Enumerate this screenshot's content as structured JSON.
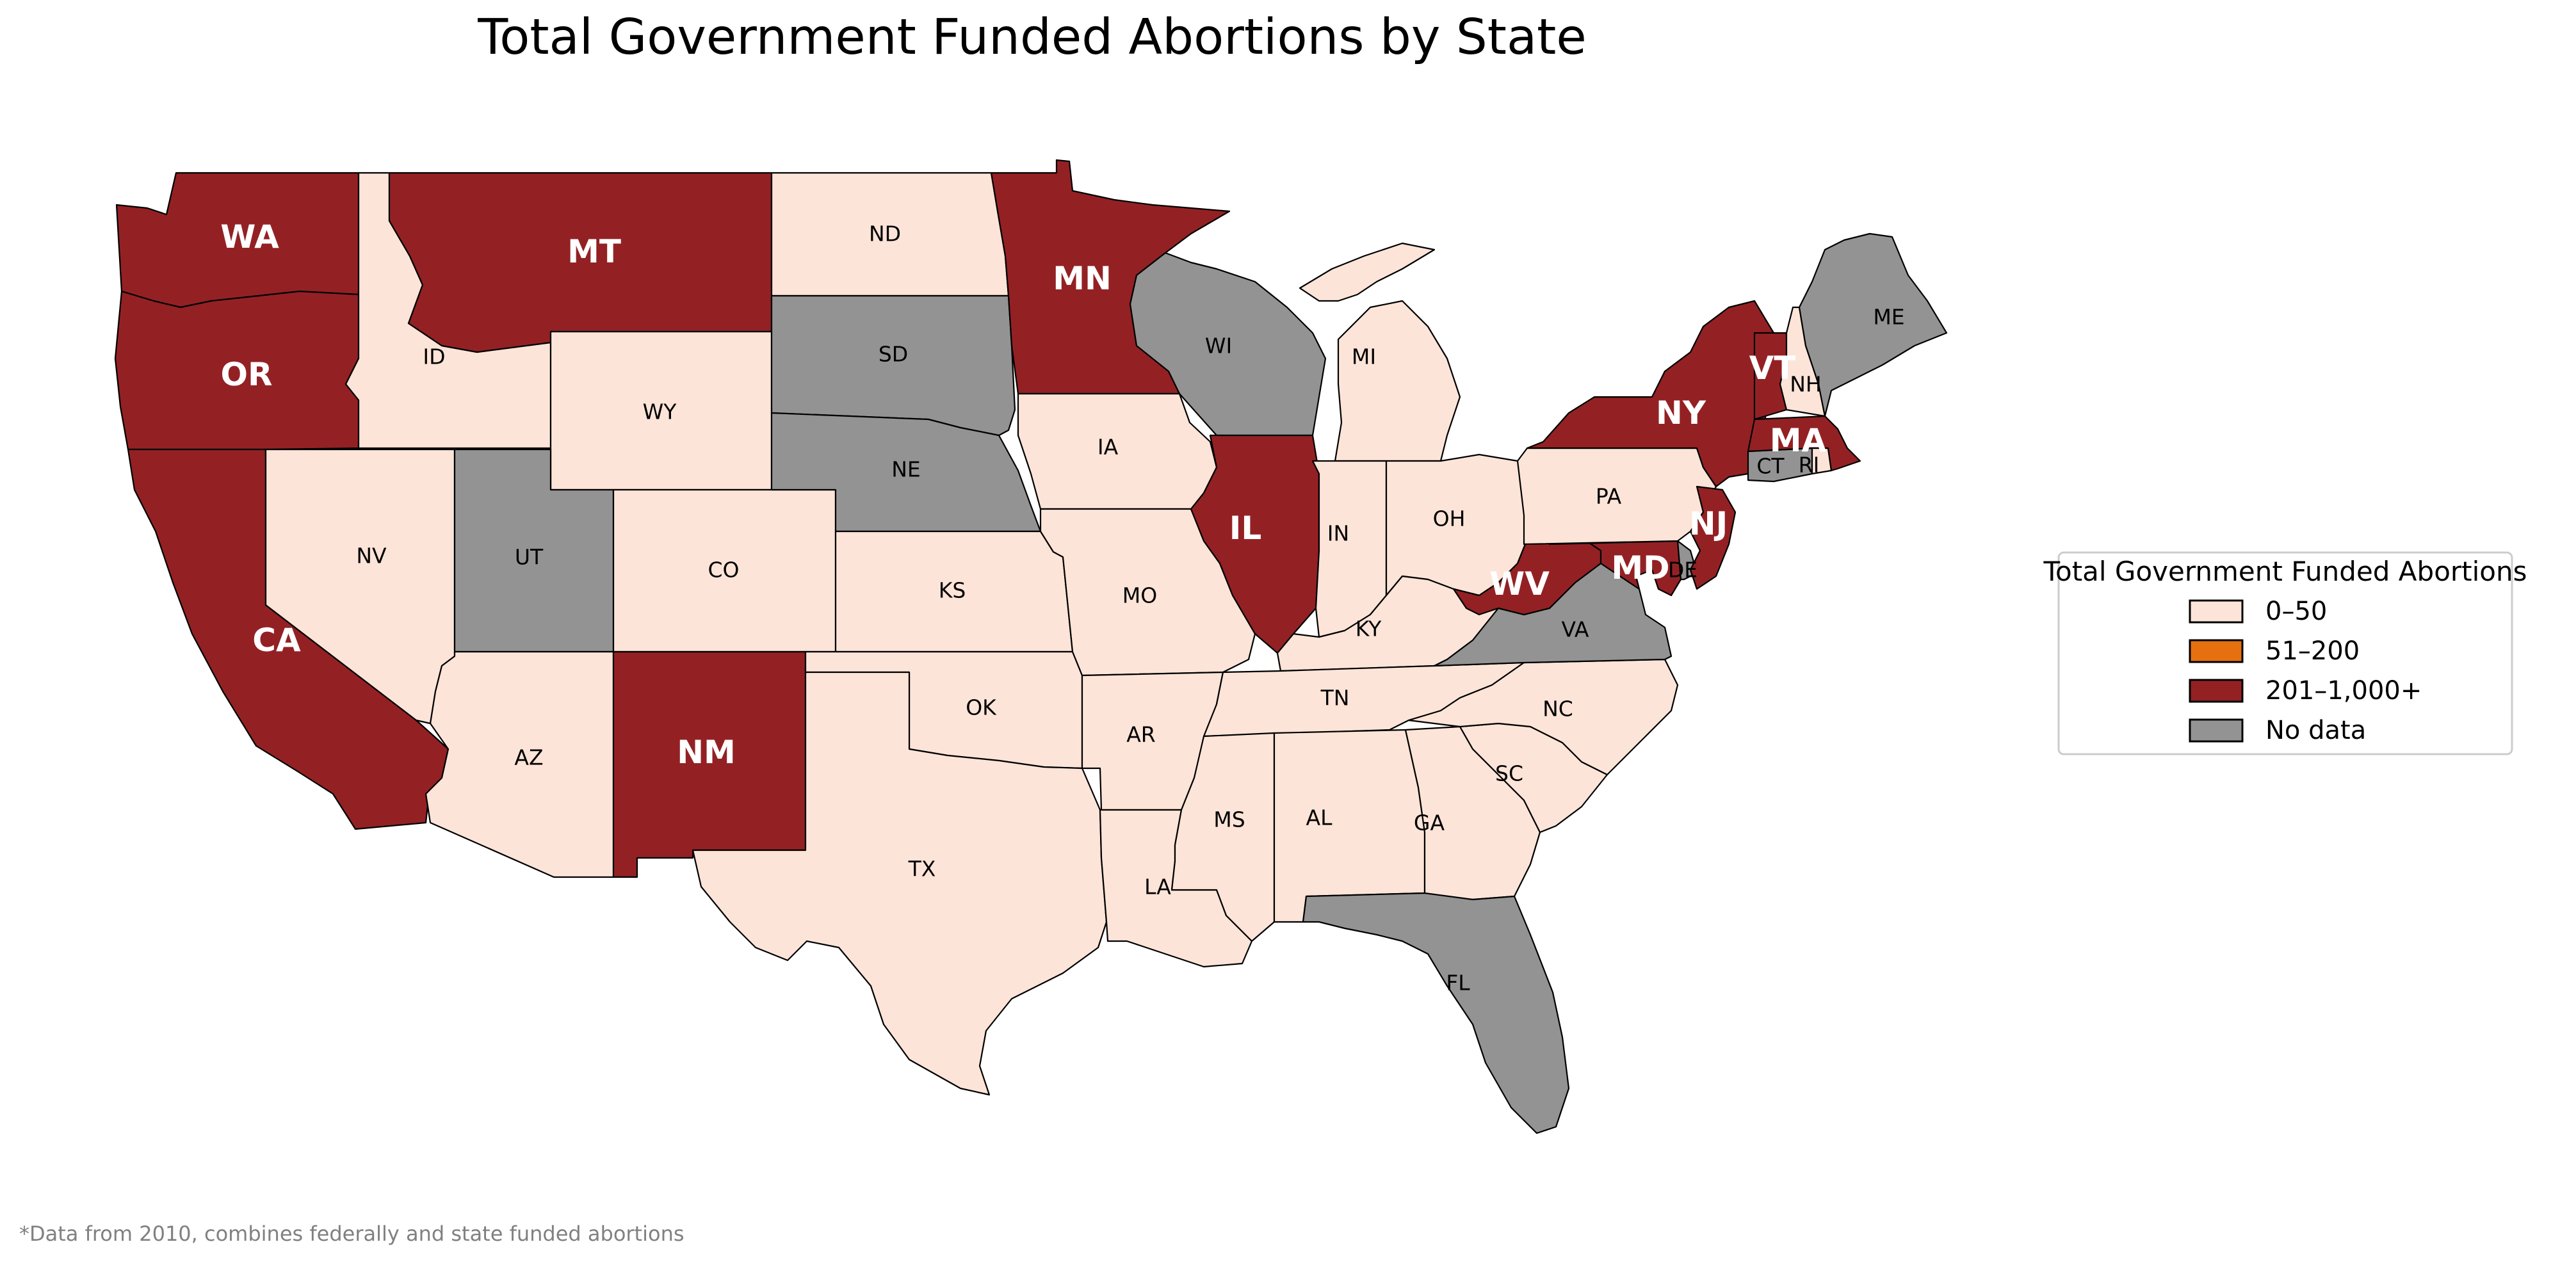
{
  "title": "Total Government Funded Abortions by State",
  "footnote": "*Data from 2010, combines federally and state funded abortions",
  "legend": {
    "title": "Total Government Funded Abortions",
    "items": [
      {
        "label": "0–50",
        "color": "#fde4d8"
      },
      {
        "label": "51–200",
        "color": "#e6700f"
      },
      {
        "label": "201–1,000+",
        "color": "#932124"
      },
      {
        "label": "No data",
        "color": "#939393"
      }
    ]
  },
  "colors": {
    "low": "#fde4d8",
    "mid": "#e6700f",
    "high": "#932124",
    "nodata": "#939393",
    "ocean": "#ffffff"
  },
  "states": [
    {
      "abbr": "WA",
      "category": "201–1,000+"
    },
    {
      "abbr": "OR",
      "category": "201–1,000+"
    },
    {
      "abbr": "CA",
      "category": "201–1,000+"
    },
    {
      "abbr": "ID",
      "category": "0–50"
    },
    {
      "abbr": "NV",
      "category": "0–50"
    },
    {
      "abbr": "MT",
      "category": "201–1,000+"
    },
    {
      "abbr": "WY",
      "category": "0–50"
    },
    {
      "abbr": "UT",
      "category": "No data"
    },
    {
      "abbr": "AZ",
      "category": "0–50"
    },
    {
      "abbr": "CO",
      "category": "0–50"
    },
    {
      "abbr": "NM",
      "category": "201–1,000+"
    },
    {
      "abbr": "ND",
      "category": "0–50"
    },
    {
      "abbr": "SD",
      "category": "No data"
    },
    {
      "abbr": "NE",
      "category": "No data"
    },
    {
      "abbr": "KS",
      "category": "0–50"
    },
    {
      "abbr": "OK",
      "category": "0–50"
    },
    {
      "abbr": "TX",
      "category": "0–50"
    },
    {
      "abbr": "MN",
      "category": "201–1,000+"
    },
    {
      "abbr": "IA",
      "category": "0–50"
    },
    {
      "abbr": "MO",
      "category": "0–50"
    },
    {
      "abbr": "AR",
      "category": "0–50"
    },
    {
      "abbr": "LA",
      "category": "0–50"
    },
    {
      "abbr": "WI",
      "category": "No data"
    },
    {
      "abbr": "IL",
      "category": "201–1,000+"
    },
    {
      "abbr": "MI",
      "category": "0–50"
    },
    {
      "abbr": "IN",
      "category": "0–50"
    },
    {
      "abbr": "OH",
      "category": "0–50"
    },
    {
      "abbr": "KY",
      "category": "0–50"
    },
    {
      "abbr": "TN",
      "category": "0–50"
    },
    {
      "abbr": "MS",
      "category": "0–50"
    },
    {
      "abbr": "AL",
      "category": "0–50"
    },
    {
      "abbr": "GA",
      "category": "0–50"
    },
    {
      "abbr": "FL",
      "category": "No data"
    },
    {
      "abbr": "SC",
      "category": "0–50"
    },
    {
      "abbr": "NC",
      "category": "0–50"
    },
    {
      "abbr": "VA",
      "category": "No data"
    },
    {
      "abbr": "WV",
      "category": "201–1,000+"
    },
    {
      "abbr": "MD",
      "category": "201–1,000+"
    },
    {
      "abbr": "DE",
      "category": "No data"
    },
    {
      "abbr": "PA",
      "category": "0–50"
    },
    {
      "abbr": "NJ",
      "category": "201–1,000+"
    },
    {
      "abbr": "NY",
      "category": "201–1,000+"
    },
    {
      "abbr": "CT",
      "category": "No data"
    },
    {
      "abbr": "RI",
      "category": "0–50"
    },
    {
      "abbr": "MA",
      "category": "201–1,000+"
    },
    {
      "abbr": "VT",
      "category": "201–1,000+"
    },
    {
      "abbr": "NH",
      "category": "0–50"
    },
    {
      "abbr": "ME",
      "category": "No data"
    }
  ]
}
